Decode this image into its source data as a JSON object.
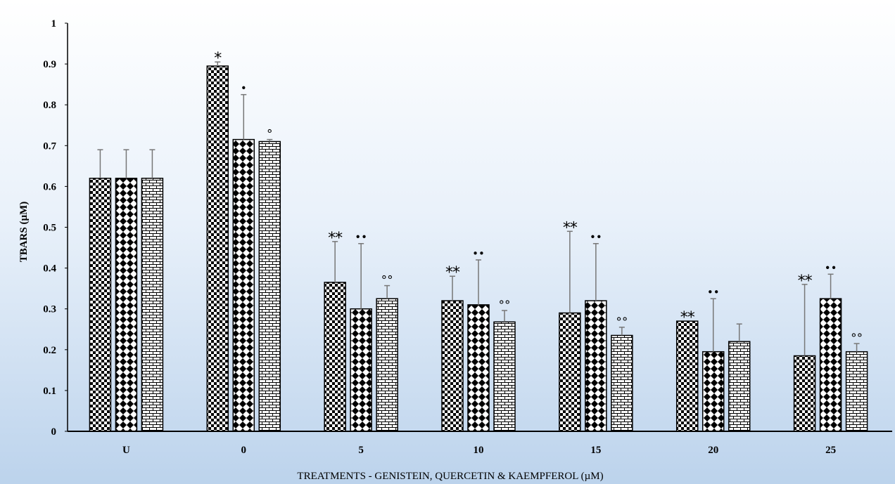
{
  "chart_data": {
    "type": "bar",
    "ylabel": "TBARS (µM)",
    "xlabel": "TREATMENTS - GENISTEIN, QUERCETIN & KAEMPFEROL (µM)",
    "ylim": [
      0,
      1
    ],
    "yticks": [
      "0",
      "0.1",
      "0.2",
      "0.3",
      "0.4",
      "0.5",
      "0.6",
      "0.7",
      "0.8",
      "0.9",
      "1"
    ],
    "grid": false,
    "categories": [
      "U",
      "0",
      "5",
      "10",
      "15",
      "20",
      "25"
    ],
    "series": [
      {
        "pattern": "checker",
        "values": [
          0.62,
          0.895,
          0.365,
          0.32,
          0.29,
          0.27,
          0.185
        ],
        "errors": [
          0.07,
          0.01,
          0.1,
          0.06,
          0.2,
          0.0,
          0.175
        ],
        "marks": [
          "",
          "*",
          "**",
          "**",
          "**",
          "**",
          "**"
        ]
      },
      {
        "pattern": "diamond",
        "values": [
          0.62,
          0.715,
          0.3,
          0.31,
          0.32,
          0.195,
          0.325
        ],
        "errors": [
          0.07,
          0.11,
          0.16,
          0.11,
          0.14,
          0.13,
          0.06
        ],
        "marks": [
          "",
          "•",
          "••",
          "••",
          "••",
          "••",
          "••"
        ]
      },
      {
        "pattern": "brick",
        "values": [
          0.62,
          0.71,
          0.325,
          0.268,
          0.235,
          0.22,
          0.195
        ],
        "errors": [
          0.07,
          0.005,
          0.032,
          0.028,
          0.02,
          0.043,
          0.02
        ],
        "marks": [
          "",
          "°",
          "°°",
          "°°",
          "°°",
          "",
          "°°"
        ]
      }
    ]
  }
}
